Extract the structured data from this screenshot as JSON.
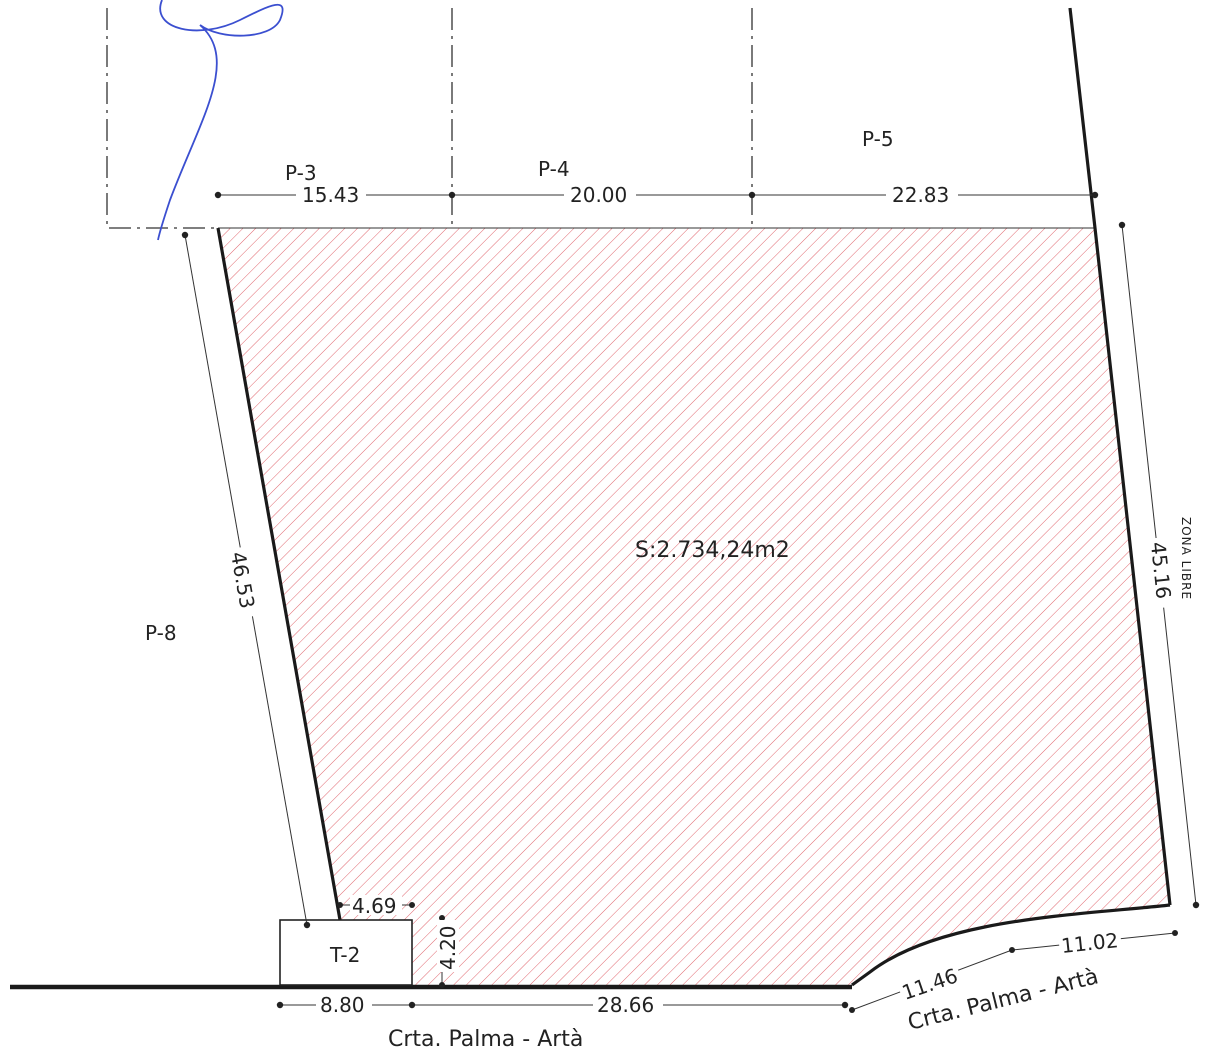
{
  "parcels": {
    "p3": "P-3",
    "p4": "P-4",
    "p5": "P-5",
    "p8": "P-8",
    "t2": "T-2"
  },
  "area_label": "S:2.734,24m2",
  "zone_label": "ZONA LIBRE",
  "dimensions": {
    "top_p3": "15.43",
    "top_p4": "20.00",
    "top_p5": "22.83",
    "left": "46.53",
    "right": "45.16",
    "notch_width": "4.69",
    "notch_height": "4.20",
    "bottom_left": "8.80",
    "bottom_main": "28.66",
    "curve_a": "11.46",
    "curve_b": "11.02"
  },
  "roads": {
    "bottom": "Crta. Palma - Artà",
    "right": "Crta. Palma - Artà"
  },
  "colors": {
    "hatch": "#d9404a",
    "signature": "#3b4fd0",
    "line": "#1a1a1a"
  }
}
